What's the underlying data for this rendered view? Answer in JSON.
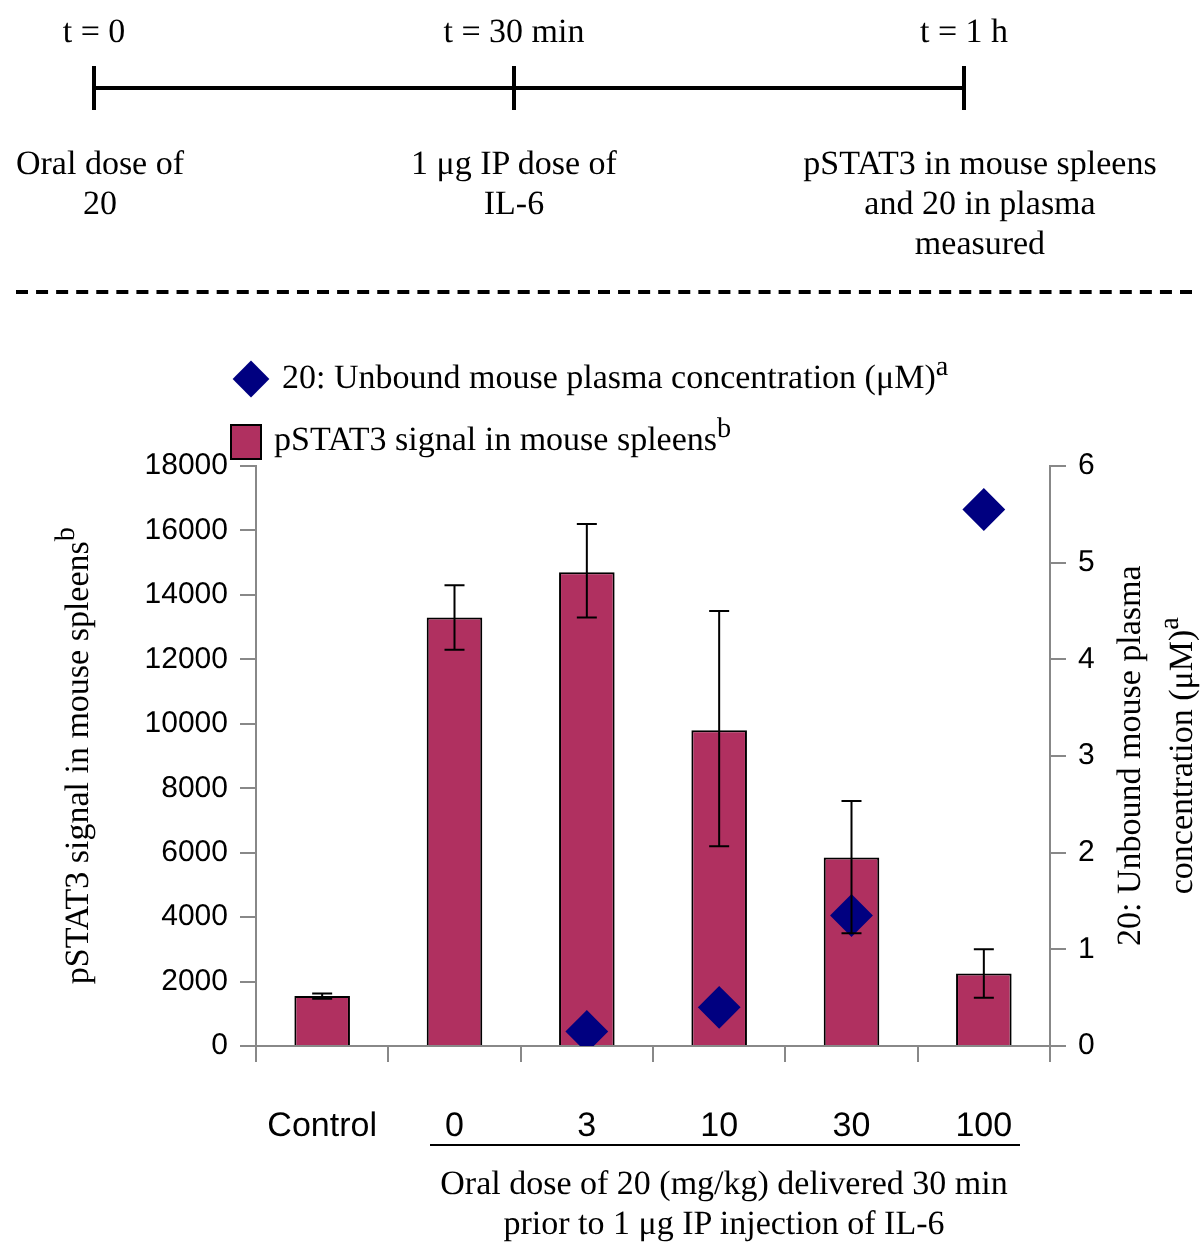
{
  "chart_data": {
    "type": "bar",
    "annotations": [
      "t = 0",
      "t = 30 min",
      "t = 1 h",
      "Oral dose of 20",
      "1 μg IP dose of IL-6",
      "pSTAT3 in mouse spleens and 20 in plasma measured"
    ],
    "categories": [
      "Control",
      "0",
      "3",
      "10",
      "30",
      "100"
    ],
    "xlabel": "Oral dose of 20 (mg/kg) delivered 30 min prior to 1 μg IP injection of IL-6",
    "ylabel": "pSTAT3 signal in mouse spleens$^{b}$",
    "y2label": "20: Unbound mouse plasma concentration (μM)$^{a}$",
    "series": [
      {
        "name": "20: Unbound mouse plasma concentration (μM)$^{a}$",
        "type": "scatter",
        "axis": "y2",
        "marker": "diamond",
        "color": "#000080",
        "values": [
          null,
          null,
          0.15,
          0.4,
          1.35,
          5.55
        ]
      },
      {
        "name": "pSTAT3 signal in mouse spleens$^{b}$",
        "color": "#b03060",
        "values": [
          1550,
          13300,
          14700,
          9800,
          5850,
          2250
        ],
        "errors": [
          80,
          [
            12300,
            14300
          ],
          [
            13300,
            16200
          ],
          [
            6200,
            13500
          ],
          [
            3500,
            7600
          ],
          [
            1500,
            3000
          ]
        ]
      }
    ],
    "ylim": [
      0,
      18000
    ],
    "yticks": [
      0,
      2000,
      4000,
      6000,
      8000,
      10000,
      12000,
      14000,
      16000,
      18000
    ],
    "y2lim": [
      0,
      6
    ],
    "y2ticks": [
      0,
      1,
      2,
      3,
      4,
      5,
      6
    ],
    "grid": false,
    "legend": "top"
  }
}
